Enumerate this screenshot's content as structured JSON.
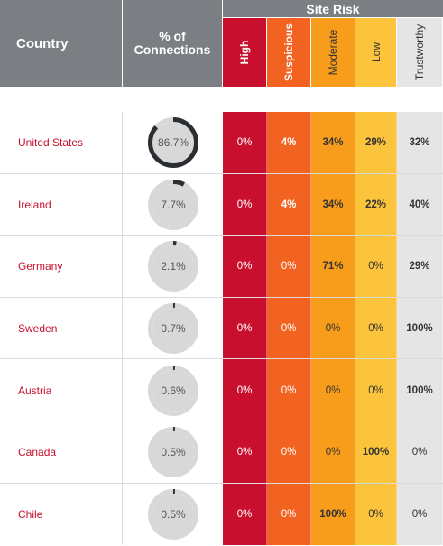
{
  "header": {
    "country": "Country",
    "connections_line1": "% of",
    "connections_line2": "Connections",
    "site_risk": "Site Risk",
    "risk_columns": [
      "High",
      "Suspicious",
      "Moderate",
      "Low",
      "Trustworthy"
    ]
  },
  "colors": {
    "high": "#c8102e",
    "suspicious": "#f26322",
    "moderate": "#f89d1b",
    "low": "#fcc43c",
    "trustworthy": "#e5e5e5",
    "ring_track": "#d8d8d8",
    "ring_fill": "#2b2f33",
    "header_gray": "#7b7f84"
  },
  "chart_data": {
    "type": "table",
    "columns": [
      "Country",
      "% of Connections",
      "High",
      "Suspicious",
      "Moderate",
      "Low",
      "Trustworthy"
    ],
    "rows": [
      {
        "country": "United States",
        "connections": 86.7,
        "connections_label": "86.7%",
        "risk": [
          "0%",
          "4%",
          "34%",
          "29%",
          "32%"
        ]
      },
      {
        "country": "Ireland",
        "connections": 7.7,
        "connections_label": "7.7%",
        "risk": [
          "0%",
          "4%",
          "34%",
          "22%",
          "40%"
        ]
      },
      {
        "country": "Germany",
        "connections": 2.1,
        "connections_label": "2.1%",
        "risk": [
          "0%",
          "0%",
          "71%",
          "0%",
          "29%"
        ]
      },
      {
        "country": "Sweden",
        "connections": 0.7,
        "connections_label": "0.7%",
        "risk": [
          "0%",
          "0%",
          "0%",
          "0%",
          "100%"
        ]
      },
      {
        "country": "Austria",
        "connections": 0.6,
        "connections_label": "0.6%",
        "risk": [
          "0%",
          "0%",
          "0%",
          "0%",
          "100%"
        ]
      },
      {
        "country": "Canada",
        "connections": 0.5,
        "connections_label": "0.5%",
        "risk": [
          "0%",
          "0%",
          "0%",
          "100%",
          "0%"
        ]
      },
      {
        "country": "Chile",
        "connections": 0.5,
        "connections_label": "0.5%",
        "risk": [
          "0%",
          "0%",
          "100%",
          "0%",
          "0%"
        ]
      }
    ]
  }
}
